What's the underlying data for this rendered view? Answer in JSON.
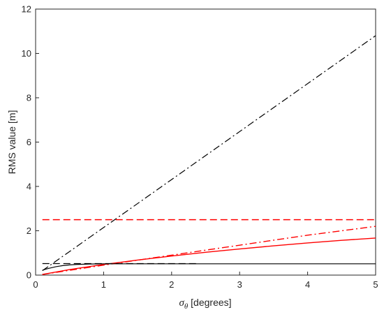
{
  "chart_data": {
    "type": "line",
    "title": "",
    "xlabel": {
      "symbol": "σ",
      "subscript": "θ",
      "text": " [degrees]"
    },
    "ylabel": "RMS value [m]",
    "xlim": [
      0,
      5
    ],
    "ylim": [
      0,
      12
    ],
    "xticks": [
      0,
      1,
      2,
      3,
      4,
      5
    ],
    "yticks": [
      0,
      2,
      4,
      6,
      8,
      10,
      12
    ],
    "grid": false,
    "legend": "none",
    "series": [
      {
        "color": "#000000",
        "style": "dashdot",
        "x": [
          0.1,
          5
        ],
        "y": [
          0.2,
          10.8
        ]
      },
      {
        "color": "#ff0000",
        "style": "dashed",
        "x": [
          0.1,
          5
        ],
        "y": [
          2.5,
          2.5
        ]
      },
      {
        "color": "#ff0000",
        "style": "dashdot",
        "x": [
          0.1,
          1,
          2,
          3,
          4,
          5
        ],
        "y": [
          0.03,
          0.45,
          0.9,
          1.35,
          1.8,
          2.2
        ]
      },
      {
        "color": "#ff0000",
        "style": "solid",
        "x": [
          0.1,
          0.5,
          1,
          1.5,
          2,
          2.5,
          3,
          3.5,
          4,
          4.5,
          5
        ],
        "y": [
          0.03,
          0.25,
          0.48,
          0.68,
          0.86,
          1.03,
          1.18,
          1.32,
          1.45,
          1.57,
          1.67
        ]
      },
      {
        "color": "#000000",
        "style": "dashed",
        "x": [
          0.1,
          2.4
        ],
        "y": [
          0.52,
          0.52
        ]
      },
      {
        "color": "#000000",
        "style": "solid",
        "x": [
          0.1,
          0.15,
          0.2,
          0.3,
          0.4,
          0.5,
          0.6,
          0.8,
          1,
          1.5,
          2,
          3,
          4,
          5
        ],
        "y": [
          0.22,
          0.27,
          0.31,
          0.38,
          0.43,
          0.46,
          0.48,
          0.5,
          0.51,
          0.51,
          0.51,
          0.51,
          0.51,
          0.51
        ]
      }
    ]
  }
}
